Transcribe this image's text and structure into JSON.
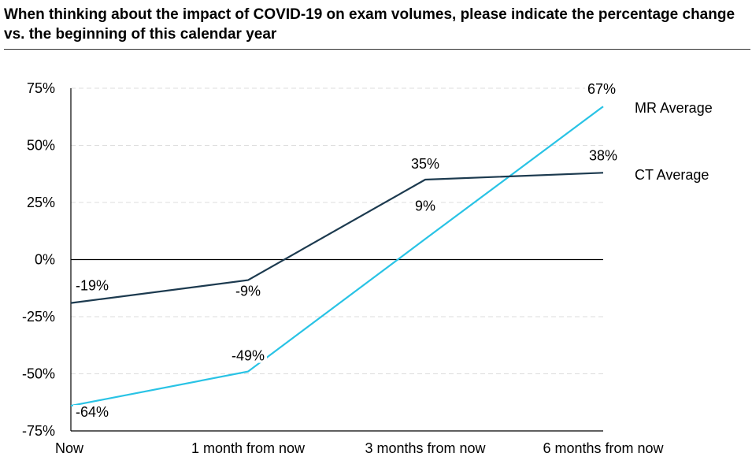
{
  "title": "When thinking about the impact of COVID-19 on exam volumes, please indicate the percentage change vs. the beginning of this calendar year",
  "chart_data": {
    "type": "line",
    "title": "When thinking about the impact of COVID-19 on exam volumes, please indicate the percentage change vs. the beginning of this calendar year",
    "xlabel": "",
    "ylabel": "",
    "categories": [
      "Now",
      "1 month from now",
      "3 months from now",
      "6 months from now"
    ],
    "ylim": [
      -75,
      75
    ],
    "yticks": [
      75,
      50,
      25,
      0,
      -25,
      -50,
      -75
    ],
    "ytick_labels": [
      "75%",
      "50%",
      "25%",
      "0%",
      "-25%",
      "-50%",
      "-75%"
    ],
    "grid": true,
    "series": [
      {
        "name": "MR Average",
        "color": "#29c3e5",
        "values": [
          -64,
          -49,
          9,
          67
        ],
        "labels": [
          "-64%",
          "-49%",
          "9%",
          "67%"
        ]
      },
      {
        "name": "CT Average",
        "color": "#1c3a4f",
        "values": [
          -19,
          -9,
          35,
          38
        ],
        "labels": [
          "-19%",
          "-9%",
          "35%",
          "38%"
        ]
      }
    ]
  }
}
